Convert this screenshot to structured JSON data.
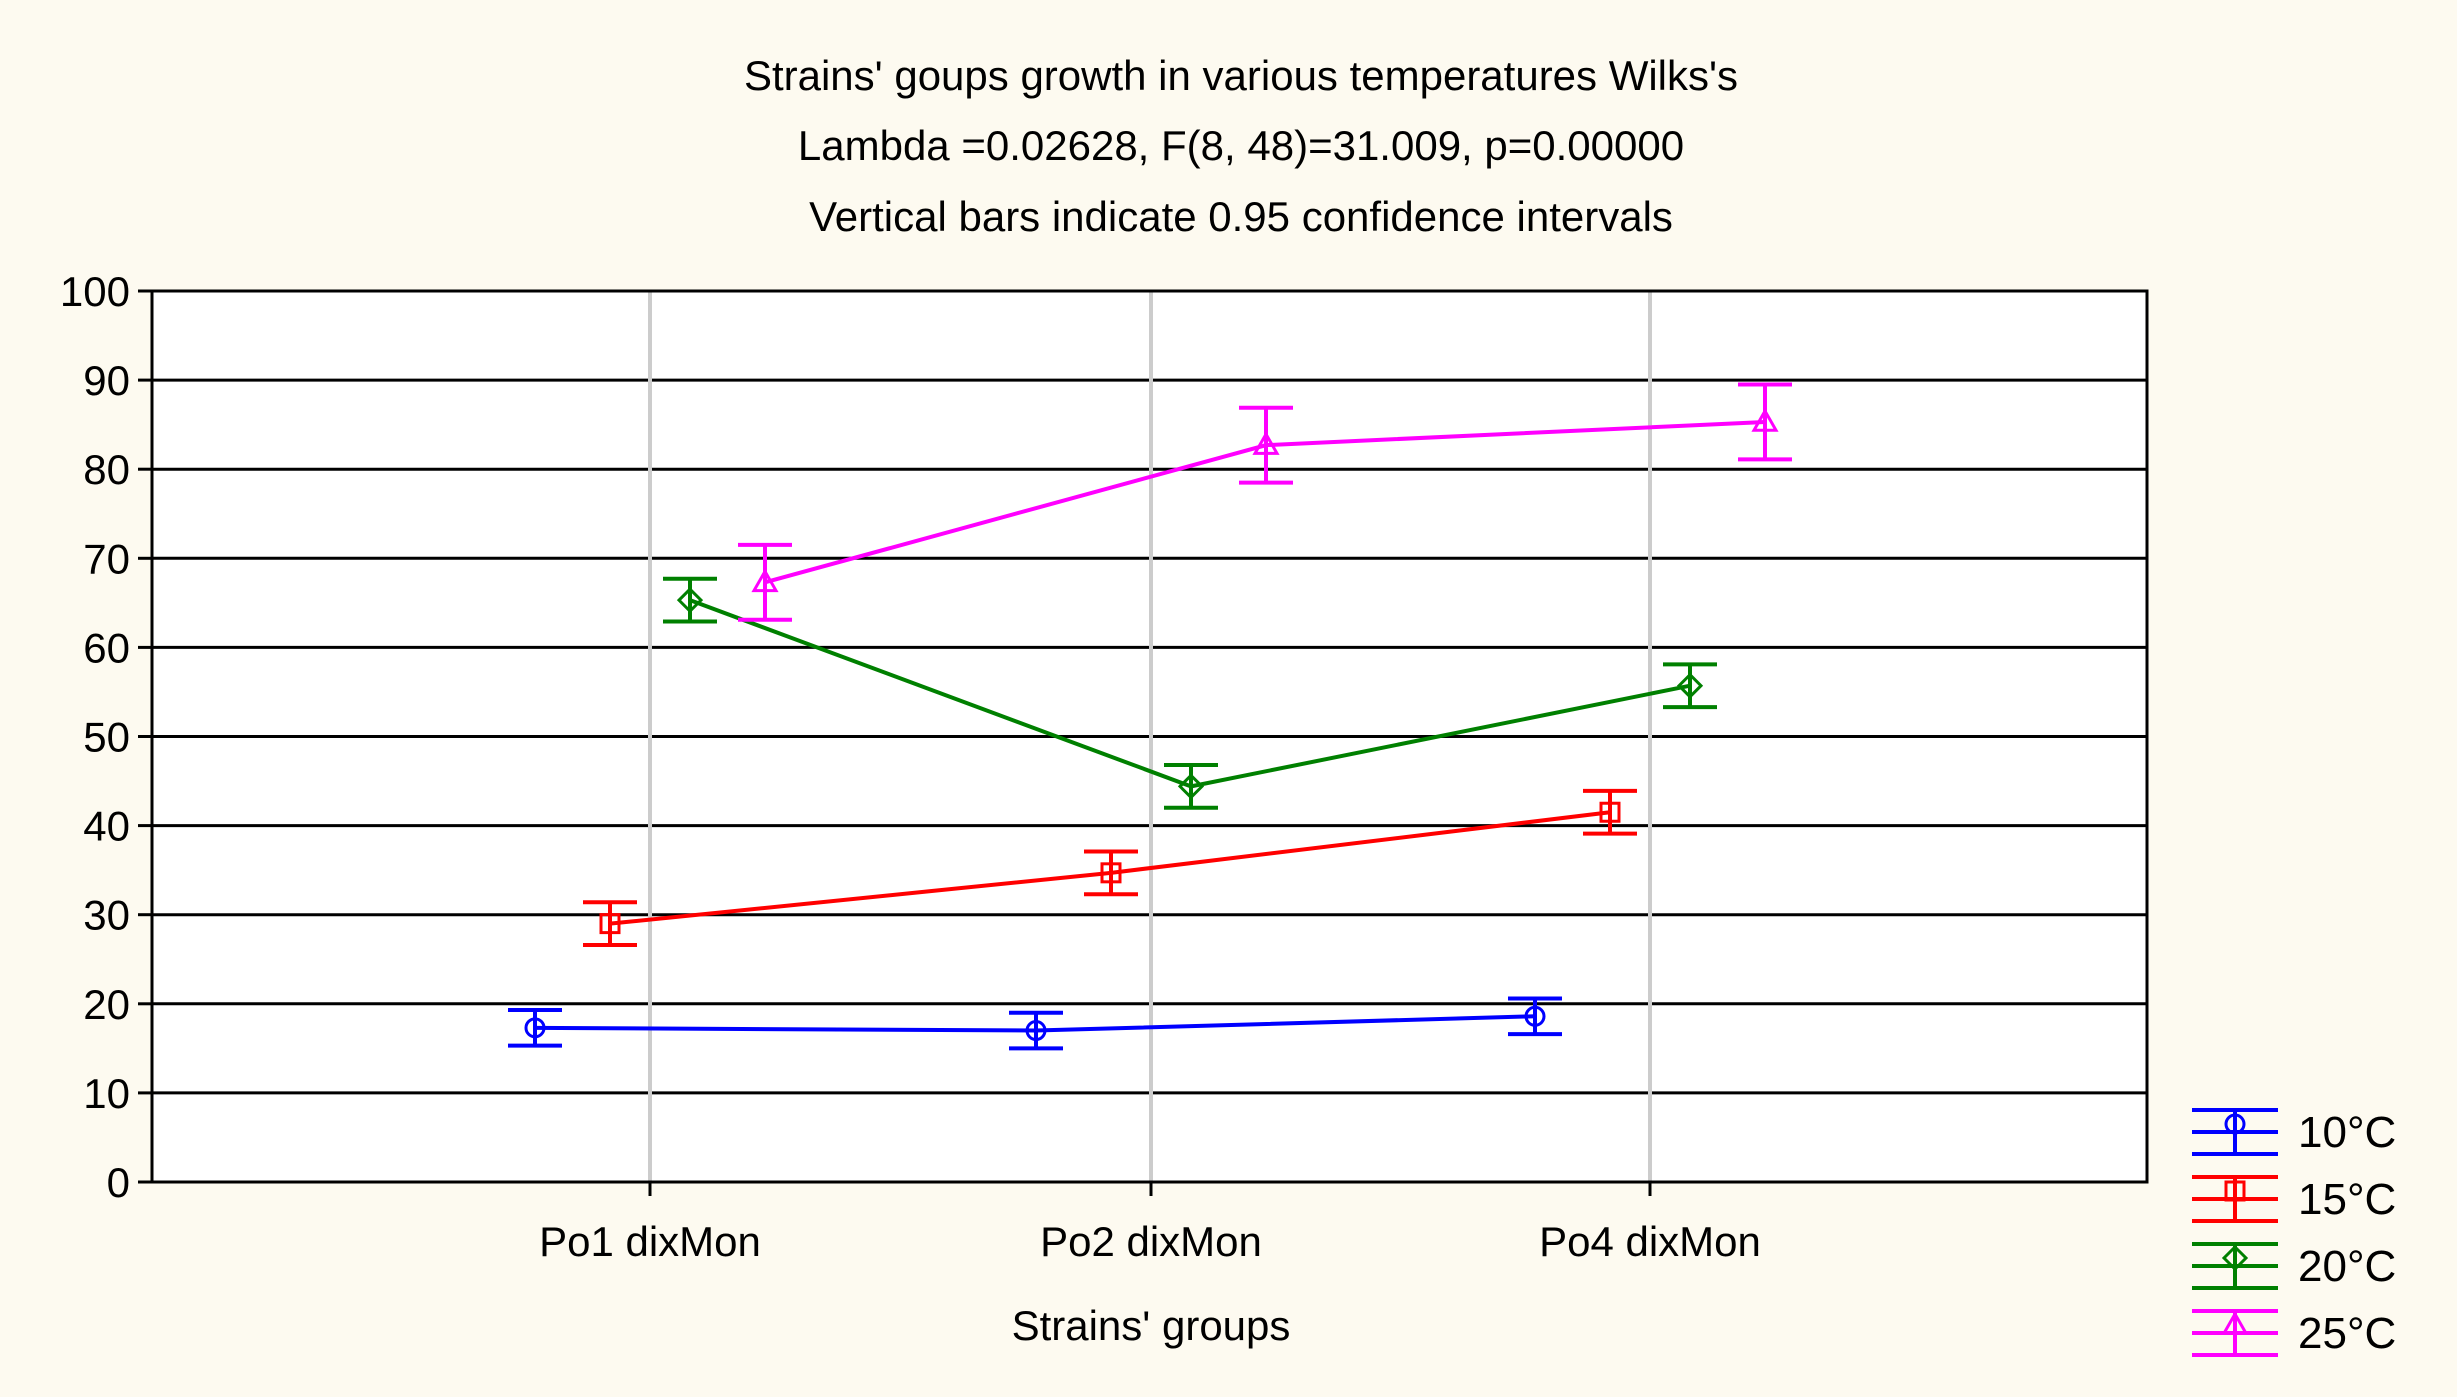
{
  "chart_data": {
    "type": "line",
    "title": [
      "Strains' goups growth in various temperatures Wilks's",
      "Lambda =0.02628, F(8, 48)=31.009, p=0.00000",
      "Vertical bars indicate 0.95 confidence intervals"
    ],
    "xlabel": "Strains' groups",
    "ylabel": "",
    "categories": [
      "Po1 dixMon",
      "Po2 dixMon",
      "Po4 dixMon"
    ],
    "ylim": [
      0,
      100
    ],
    "yticks": [
      "0",
      "10",
      "20",
      "30",
      "40",
      "50",
      "60",
      "70",
      "80",
      "90",
      "100"
    ],
    "grid": true,
    "legend_position": "bottom-right",
    "error_bars": "0.95 confidence intervals",
    "series": [
      {
        "name": "10°C",
        "color": "#0000ff",
        "marker": "circle",
        "values": [
          17.3,
          17.0,
          18.6
        ],
        "lower": [
          15.3,
          15.0,
          16.6
        ],
        "upper": [
          19.3,
          19.0,
          20.6
        ]
      },
      {
        "name": "15°C",
        "color": "#ff0000",
        "marker": "square",
        "values": [
          29.0,
          34.7,
          41.5
        ],
        "lower": [
          26.6,
          32.3,
          39.1
        ],
        "upper": [
          31.4,
          37.1,
          43.9
        ]
      },
      {
        "name": "20°C",
        "color": "#008000",
        "marker": "diamond",
        "values": [
          65.3,
          44.4,
          55.7
        ],
        "lower": [
          62.9,
          42.0,
          53.3
        ],
        "upper": [
          67.7,
          46.8,
          58.1
        ]
      },
      {
        "name": "25°C",
        "color": "#ff00ff",
        "marker": "triangle",
        "values": [
          67.3,
          82.7,
          85.3
        ],
        "lower": [
          63.1,
          78.5,
          81.1
        ],
        "upper": [
          71.5,
          86.9,
          89.5
        ]
      }
    ]
  }
}
